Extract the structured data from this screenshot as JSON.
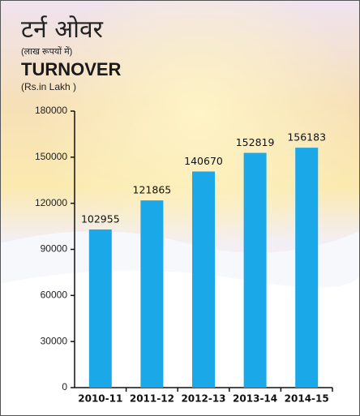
{
  "chart_data": {
    "type": "bar",
    "title_hindi": "टर्न ओवर",
    "unit_hindi": "(लाख रूपयों में)",
    "title": "TURNOVER",
    "unit": "(Rs.in Lakh )",
    "categories": [
      "2010-11",
      "2011-12",
      "2012-13",
      "2013-14",
      "2014-15"
    ],
    "values": [
      102955,
      121865,
      140670,
      152819,
      156183
    ],
    "color": "#1ba8e9",
    "ylim": [
      0,
      180000
    ],
    "yticks": [
      0,
      30000,
      60000,
      90000,
      120000,
      150000,
      180000
    ],
    "grid": false
  }
}
